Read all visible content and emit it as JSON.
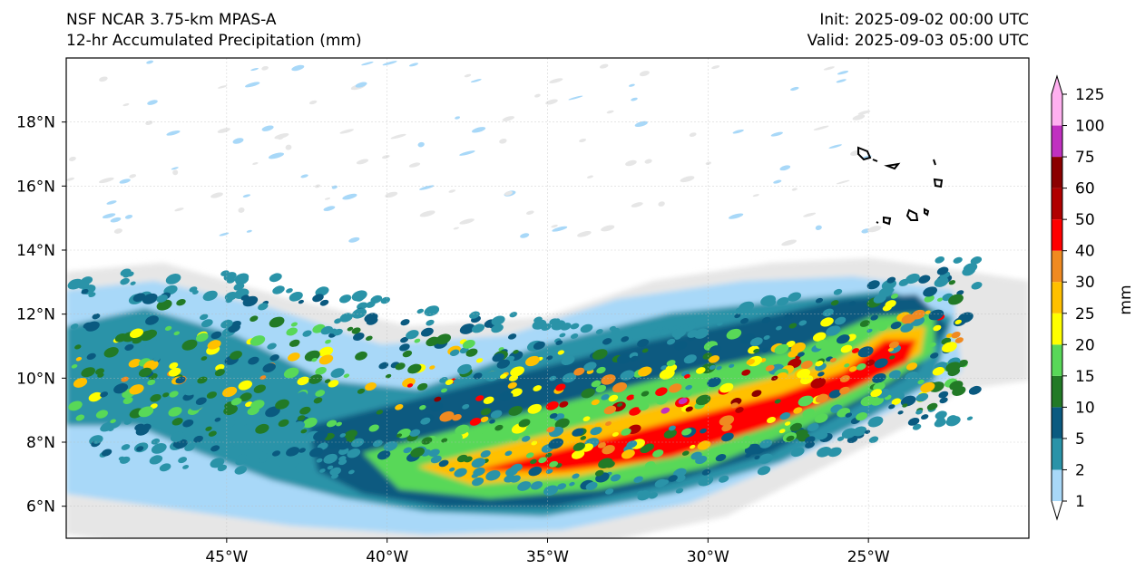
{
  "header": {
    "model_title": "NSF NCAR 3.75-km MPAS-A",
    "field_title": "12-hr Accumulated Precipitation (mm)",
    "init_time": "Init: 2025-09-02 00:00 UTC",
    "valid_time": "Valid: 2025-09-03 05:00 UTC"
  },
  "map": {
    "lon_range": [
      -50,
      -20
    ],
    "lat_range": [
      5,
      20
    ],
    "lon_ticks": [
      {
        "value": -45,
        "label": "45°W"
      },
      {
        "value": -40,
        "label": "40°W"
      },
      {
        "value": -35,
        "label": "35°W"
      },
      {
        "value": -30,
        "label": "30°W"
      },
      {
        "value": -25,
        "label": "25°W"
      }
    ],
    "lat_ticks": [
      {
        "value": 6,
        "label": "6°N"
      },
      {
        "value": 8,
        "label": "8°N"
      },
      {
        "value": 10,
        "label": "10°N"
      },
      {
        "value": 12,
        "label": "12°N"
      },
      {
        "value": 14,
        "label": "14°N"
      },
      {
        "value": 16,
        "label": "16°N"
      },
      {
        "value": 18,
        "label": "18°N"
      }
    ],
    "gridlines": true
  },
  "colorbar": {
    "unit_label": "mm",
    "levels": [
      {
        "label": "1",
        "color": "#e6e6e6"
      },
      {
        "label": "2",
        "color": "#a8d8f8"
      },
      {
        "label": "5",
        "color": "#2a93a8"
      },
      {
        "label": "10",
        "color": "#0a5a80"
      },
      {
        "label": "15",
        "color": "#227a26"
      },
      {
        "label": "20",
        "color": "#58d858"
      },
      {
        "label": "25",
        "color": "#ffff00"
      },
      {
        "label": "30",
        "color": "#ffc000"
      },
      {
        "label": "40",
        "color": "#f08a20"
      },
      {
        "label": "50",
        "color": "#ff0000"
      },
      {
        "label": "60",
        "color": "#b00000"
      },
      {
        "label": "75",
        "color": "#8b0000"
      },
      {
        "label": "100",
        "color": "#c030c0"
      },
      {
        "label": "125",
        "color": "#ffb0f0"
      }
    ]
  }
}
